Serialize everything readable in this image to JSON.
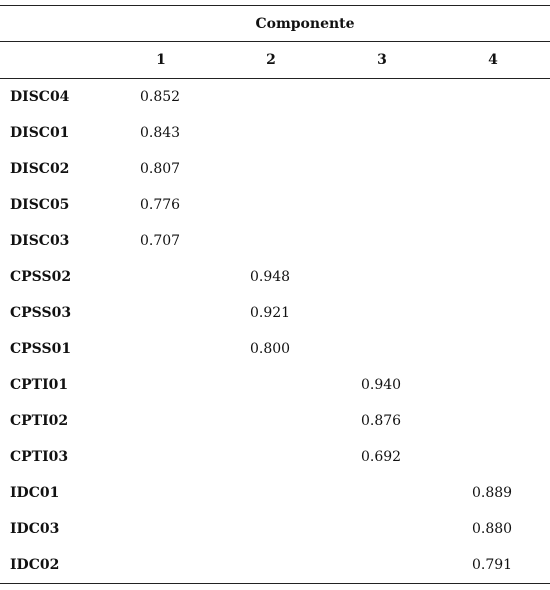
{
  "table": {
    "group_header": "Componente",
    "columns": [
      "1",
      "2",
      "3",
      "4"
    ],
    "rows": [
      [
        "DISC04",
        "0.852",
        null,
        null,
        null
      ],
      [
        "DISC01",
        "0.843",
        null,
        null,
        null
      ],
      [
        "DISC02",
        "0.807",
        null,
        null,
        null
      ],
      [
        "DISC05",
        "0.776",
        null,
        null,
        null
      ],
      [
        "DISC03",
        "0.707",
        null,
        null,
        null
      ],
      [
        "CPSS02",
        null,
        "0.948",
        null,
        null
      ],
      [
        "CPSS03",
        null,
        "0.921",
        null,
        null
      ],
      [
        "CPSS01",
        null,
        "0.800",
        null,
        null
      ],
      [
        "CPTI01",
        null,
        null,
        "0.940",
        null
      ],
      [
        "CPTI02",
        null,
        null,
        "0.876",
        null
      ],
      [
        "CPTI03",
        null,
        null,
        "0.692",
        null
      ],
      [
        "IDC01",
        null,
        null,
        null,
        "0.889"
      ],
      [
        "IDC03",
        null,
        null,
        null,
        "0.880"
      ],
      [
        "IDC02",
        null,
        null,
        null,
        "0.791"
      ]
    ]
  }
}
